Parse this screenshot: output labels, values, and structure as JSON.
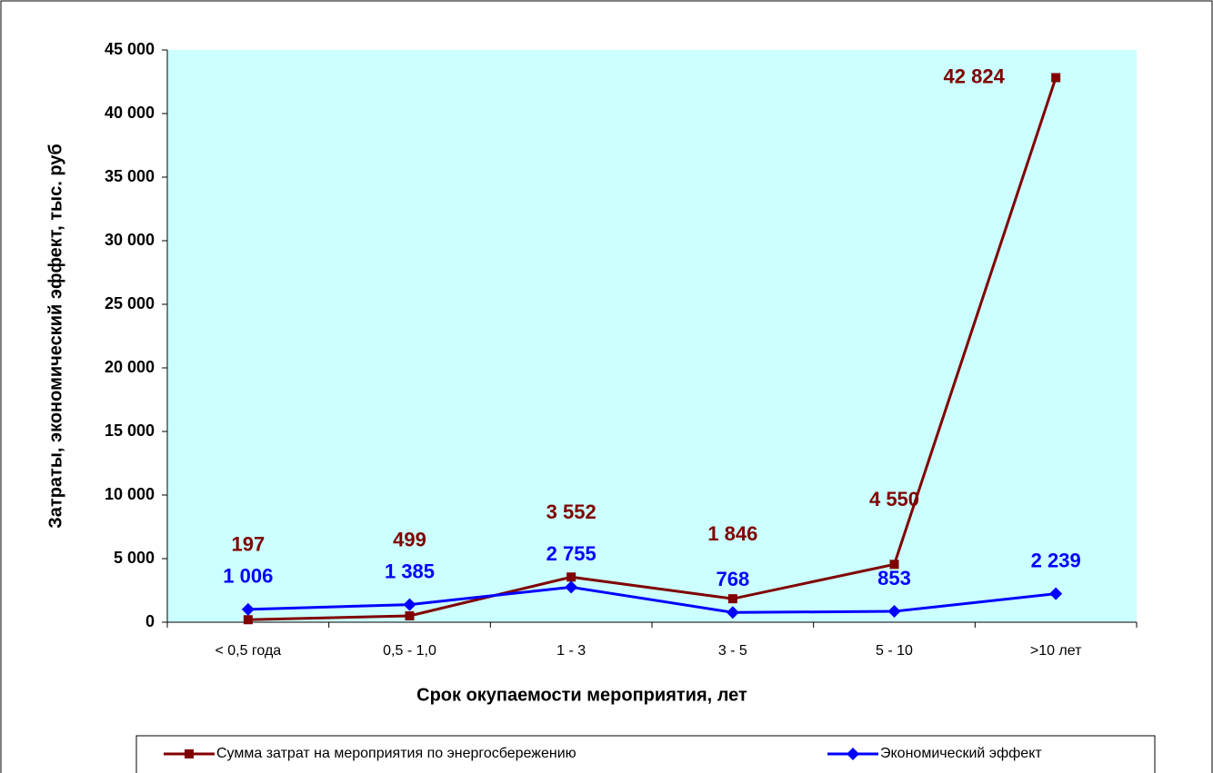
{
  "chart_data": {
    "type": "line",
    "xlabel": "Срок окупаемости мероприятия, лет",
    "ylabel": "Затраты, экономический эффект, тыс. руб",
    "categories": [
      "< 0,5 года",
      "0,5 - 1,0",
      "1 - 3",
      "3  -  5",
      "5 - 10",
      ">10 лет"
    ],
    "series": [
      {
        "name": "Сумма затрат на мероприятия по энергосбережению",
        "color": "#800000",
        "marker": "square",
        "values": [
          197,
          499,
          3552,
          1846,
          4550,
          42824
        ],
        "value_labels": [
          "197",
          "499",
          "3 552",
          "1 846",
          "4 550",
          "42 824"
        ]
      },
      {
        "name": "Экономический эффект",
        "color": "#0000ff",
        "marker": "diamond",
        "values": [
          1006,
          1385,
          2755,
          768,
          853,
          2239
        ],
        "value_labels": [
          "1 006",
          "1 385",
          "2 755",
          "768",
          "853",
          "2 239"
        ]
      }
    ],
    "ylim": [
      0,
      45000
    ],
    "yticks": [
      0,
      {
        "value": 5000,
        "label": "5 000"
      },
      {
        "value": 10000,
        "label": "10 000"
      },
      {
        "value": 15000,
        "label": "15 000"
      },
      {
        "value": 20000,
        "label": "20 000"
      },
      {
        "value": 25000,
        "label": "25 000"
      },
      {
        "value": 30000,
        "label": "30 000"
      },
      {
        "value": 35000,
        "label": "35 000"
      },
      {
        "value": 40000,
        "label": "40 000"
      },
      {
        "value": 45000,
        "label": "45 000"
      }
    ],
    "grid": false,
    "legend": "bottom",
    "plot_background": "#ccffff"
  }
}
